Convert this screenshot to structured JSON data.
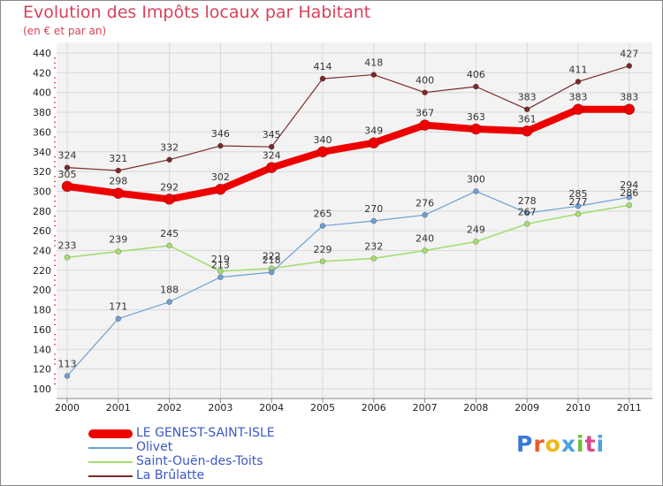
{
  "chart_data": {
    "type": "line",
    "title": "Evolution des Impôts locaux par Habitant",
    "subtitle": "(en € et par an)",
    "xlabel": "",
    "ylabel": "",
    "ylim": [
      100,
      440
    ],
    "yticks": [
      100,
      120,
      140,
      160,
      180,
      200,
      220,
      240,
      260,
      280,
      300,
      320,
      340,
      360,
      380,
      400,
      420,
      440
    ],
    "categories": [
      "2000",
      "2001",
      "2002",
      "2003",
      "2004",
      "2005",
      "2006",
      "2007",
      "2008",
      "2009",
      "2010",
      "2011"
    ],
    "grid": true,
    "legend_position": "bottom-left",
    "series": [
      {
        "name": "LE GENEST-SAINT-ISLE",
        "color": "#ee0000",
        "values": [
          305,
          298,
          292,
          302,
          324,
          340,
          349,
          367,
          363,
          361,
          383,
          383
        ]
      },
      {
        "name": "Olivet",
        "color": "#6f9fd1",
        "values": [
          113,
          171,
          188,
          213,
          218,
          265,
          270,
          276,
          300,
          278,
          285,
          294
        ]
      },
      {
        "name": "Saint-Ouën-des-Toits",
        "color": "#a6dd72",
        "values": [
          233,
          239,
          245,
          219,
          222,
          229,
          232,
          240,
          249,
          267,
          277,
          286
        ]
      },
      {
        "name": "La Brûlatte",
        "color": "#7a2a2a",
        "values": [
          324,
          321,
          332,
          346,
          345,
          414,
          418,
          400,
          406,
          383,
          411,
          427
        ]
      }
    ]
  },
  "logo": {
    "text": "Proxiti",
    "colors": [
      "#3a7bd5",
      "#e85d2a",
      "#f2b617",
      "#4aa3df",
      "#6cbf3a",
      "#d94a8c",
      "#4aa3df"
    ]
  }
}
